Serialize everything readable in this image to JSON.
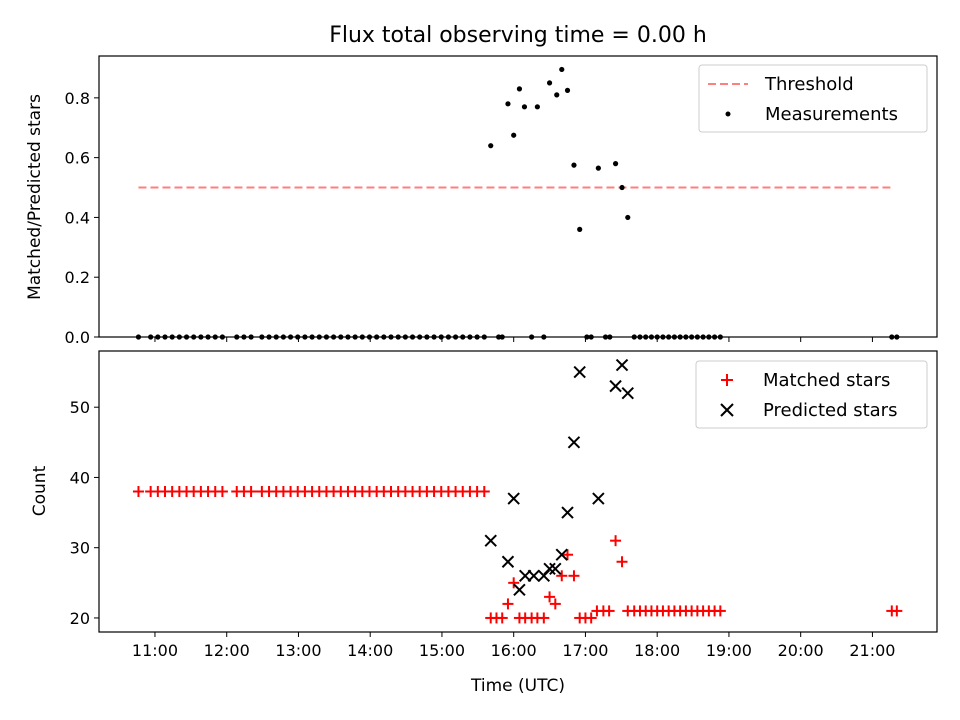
{
  "chart_data": [
    {
      "type": "scatter",
      "title": "Flux total observing time = 0.00 h",
      "xlabel": "",
      "ylabel": "Matched/Predicted stars",
      "xlim": [
        10.22,
        21.9
      ],
      "ylim": [
        0,
        0.94
      ],
      "yticks": [
        0.0,
        0.2,
        0.4,
        0.6,
        0.8
      ],
      "ytick_labels": [
        "0.0",
        "0.2",
        "0.4",
        "0.6",
        "0.8"
      ],
      "threshold": {
        "name": "Threshold",
        "value": 0.5,
        "x_start": 10.77,
        "x_end": 21.25,
        "color": "#ff7f7f"
      },
      "series": [
        {
          "name": "Measurements",
          "color": "#000000",
          "points": [
            [
              10.77,
              0
            ],
            [
              10.94,
              0
            ],
            [
              11.04,
              0
            ],
            [
              11.14,
              0
            ],
            [
              11.24,
              0
            ],
            [
              11.34,
              0
            ],
            [
              11.44,
              0
            ],
            [
              11.54,
              0
            ],
            [
              11.64,
              0
            ],
            [
              11.74,
              0
            ],
            [
              11.84,
              0
            ],
            [
              11.94,
              0
            ],
            [
              12.14,
              0
            ],
            [
              12.24,
              0
            ],
            [
              12.34,
              0
            ],
            [
              12.49,
              0
            ],
            [
              12.59,
              0
            ],
            [
              12.69,
              0
            ],
            [
              12.79,
              0
            ],
            [
              12.89,
              0
            ],
            [
              12.99,
              0
            ],
            [
              13.09,
              0
            ],
            [
              13.19,
              0
            ],
            [
              13.29,
              0
            ],
            [
              13.39,
              0
            ],
            [
              13.49,
              0
            ],
            [
              13.59,
              0
            ],
            [
              13.69,
              0
            ],
            [
              13.79,
              0
            ],
            [
              13.89,
              0
            ],
            [
              13.99,
              0
            ],
            [
              14.09,
              0
            ],
            [
              14.19,
              0
            ],
            [
              14.29,
              0
            ],
            [
              14.39,
              0
            ],
            [
              14.49,
              0
            ],
            [
              14.59,
              0
            ],
            [
              14.69,
              0
            ],
            [
              14.79,
              0
            ],
            [
              14.89,
              0
            ],
            [
              14.99,
              0
            ],
            [
              15.09,
              0
            ],
            [
              15.19,
              0
            ],
            [
              15.29,
              0
            ],
            [
              15.39,
              0
            ],
            [
              15.49,
              0
            ],
            [
              15.59,
              0
            ],
            [
              15.68,
              0.64
            ],
            [
              15.79,
              0
            ],
            [
              15.84,
              0
            ],
            [
              15.92,
              0.78
            ],
            [
              16.0,
              0.675
            ],
            [
              16.08,
              0.83
            ],
            [
              16.15,
              0.77
            ],
            [
              16.25,
              0
            ],
            [
              16.33,
              0.77
            ],
            [
              16.42,
              0
            ],
            [
              16.5,
              0.85
            ],
            [
              16.6,
              0.81
            ],
            [
              16.67,
              0.895
            ],
            [
              16.75,
              0.825
            ],
            [
              16.84,
              0.575
            ],
            [
              16.92,
              0.36
            ],
            [
              17.02,
              0
            ],
            [
              17.08,
              0
            ],
            [
              17.18,
              0.565
            ],
            [
              17.28,
              0
            ],
            [
              17.34,
              0
            ],
            [
              17.42,
              0.58
            ],
            [
              17.51,
              0.5
            ],
            [
              17.59,
              0.4
            ],
            [
              17.68,
              0
            ],
            [
              17.76,
              0
            ],
            [
              17.84,
              0
            ],
            [
              17.92,
              0
            ],
            [
              18.0,
              0
            ],
            [
              18.08,
              0
            ],
            [
              18.16,
              0
            ],
            [
              18.24,
              0
            ],
            [
              18.32,
              0
            ],
            [
              18.4,
              0
            ],
            [
              18.48,
              0
            ],
            [
              18.56,
              0
            ],
            [
              18.64,
              0
            ],
            [
              18.72,
              0
            ],
            [
              18.8,
              0
            ],
            [
              18.88,
              0
            ],
            [
              21.27,
              0
            ],
            [
              21.34,
              0
            ]
          ]
        }
      ]
    },
    {
      "type": "scatter",
      "title": "",
      "xlabel": "Time (UTC)",
      "ylabel": "Count",
      "xlim": [
        10.22,
        21.9
      ],
      "ylim": [
        18,
        58
      ],
      "yticks": [
        20,
        30,
        40,
        50
      ],
      "ytick_labels": [
        "20",
        "30",
        "40",
        "50"
      ],
      "xticks": [
        11,
        12,
        13,
        14,
        15,
        16,
        17,
        18,
        19,
        20,
        21
      ],
      "xtick_labels": [
        "11:00",
        "12:00",
        "13:00",
        "14:00",
        "15:00",
        "16:00",
        "17:00",
        "18:00",
        "19:00",
        "20:00",
        "21:00"
      ],
      "series": [
        {
          "name": "Matched stars",
          "color": "#ff0000",
          "marker": "plus",
          "points": [
            [
              10.77,
              38
            ],
            [
              10.94,
              38
            ],
            [
              11.04,
              38
            ],
            [
              11.14,
              38
            ],
            [
              11.24,
              38
            ],
            [
              11.34,
              38
            ],
            [
              11.44,
              38
            ],
            [
              11.54,
              38
            ],
            [
              11.64,
              38
            ],
            [
              11.74,
              38
            ],
            [
              11.84,
              38
            ],
            [
              11.94,
              38
            ],
            [
              12.14,
              38
            ],
            [
              12.24,
              38
            ],
            [
              12.34,
              38
            ],
            [
              12.49,
              38
            ],
            [
              12.59,
              38
            ],
            [
              12.69,
              38
            ],
            [
              12.79,
              38
            ],
            [
              12.89,
              38
            ],
            [
              12.99,
              38
            ],
            [
              13.09,
              38
            ],
            [
              13.19,
              38
            ],
            [
              13.29,
              38
            ],
            [
              13.39,
              38
            ],
            [
              13.49,
              38
            ],
            [
              13.59,
              38
            ],
            [
              13.69,
              38
            ],
            [
              13.79,
              38
            ],
            [
              13.89,
              38
            ],
            [
              13.99,
              38
            ],
            [
              14.09,
              38
            ],
            [
              14.19,
              38
            ],
            [
              14.29,
              38
            ],
            [
              14.39,
              38
            ],
            [
              14.49,
              38
            ],
            [
              14.59,
              38
            ],
            [
              14.69,
              38
            ],
            [
              14.79,
              38
            ],
            [
              14.89,
              38
            ],
            [
              14.99,
              38
            ],
            [
              15.09,
              38
            ],
            [
              15.19,
              38
            ],
            [
              15.29,
              38
            ],
            [
              15.39,
              38
            ],
            [
              15.49,
              38
            ],
            [
              15.59,
              38
            ],
            [
              15.68,
              20
            ],
            [
              15.76,
              20
            ],
            [
              15.84,
              20
            ],
            [
              15.92,
              22
            ],
            [
              16.0,
              25
            ],
            [
              16.08,
              20
            ],
            [
              16.16,
              20
            ],
            [
              16.25,
              20
            ],
            [
              16.33,
              20
            ],
            [
              16.42,
              20
            ],
            [
              16.5,
              23
            ],
            [
              16.58,
              22
            ],
            [
              16.67,
              26
            ],
            [
              16.75,
              29
            ],
            [
              16.84,
              26
            ],
            [
              16.92,
              20
            ],
            [
              17.0,
              20
            ],
            [
              17.08,
              20
            ],
            [
              17.16,
              21
            ],
            [
              17.25,
              21
            ],
            [
              17.33,
              21
            ],
            [
              17.42,
              31
            ],
            [
              17.51,
              28
            ],
            [
              17.59,
              21
            ],
            [
              17.68,
              21
            ],
            [
              17.76,
              21
            ],
            [
              17.84,
              21
            ],
            [
              17.92,
              21
            ],
            [
              18.0,
              21
            ],
            [
              18.08,
              21
            ],
            [
              18.16,
              21
            ],
            [
              18.24,
              21
            ],
            [
              18.32,
              21
            ],
            [
              18.4,
              21
            ],
            [
              18.48,
              21
            ],
            [
              18.56,
              21
            ],
            [
              18.64,
              21
            ],
            [
              18.72,
              21
            ],
            [
              18.8,
              21
            ],
            [
              18.88,
              21
            ],
            [
              21.27,
              21
            ],
            [
              21.34,
              21
            ]
          ]
        },
        {
          "name": "Predicted stars",
          "color": "#000000",
          "marker": "x",
          "points": [
            [
              15.68,
              31
            ],
            [
              15.92,
              28
            ],
            [
              16.0,
              37
            ],
            [
              16.08,
              24
            ],
            [
              16.16,
              26
            ],
            [
              16.28,
              26
            ],
            [
              16.42,
              26
            ],
            [
              16.5,
              27
            ],
            [
              16.58,
              27
            ],
            [
              16.67,
              29
            ],
            [
              16.75,
              35
            ],
            [
              16.84,
              45
            ],
            [
              16.92,
              55
            ],
            [
              17.18,
              37
            ],
            [
              17.42,
              53
            ],
            [
              17.51,
              56
            ],
            [
              17.59,
              52
            ]
          ]
        }
      ]
    }
  ]
}
